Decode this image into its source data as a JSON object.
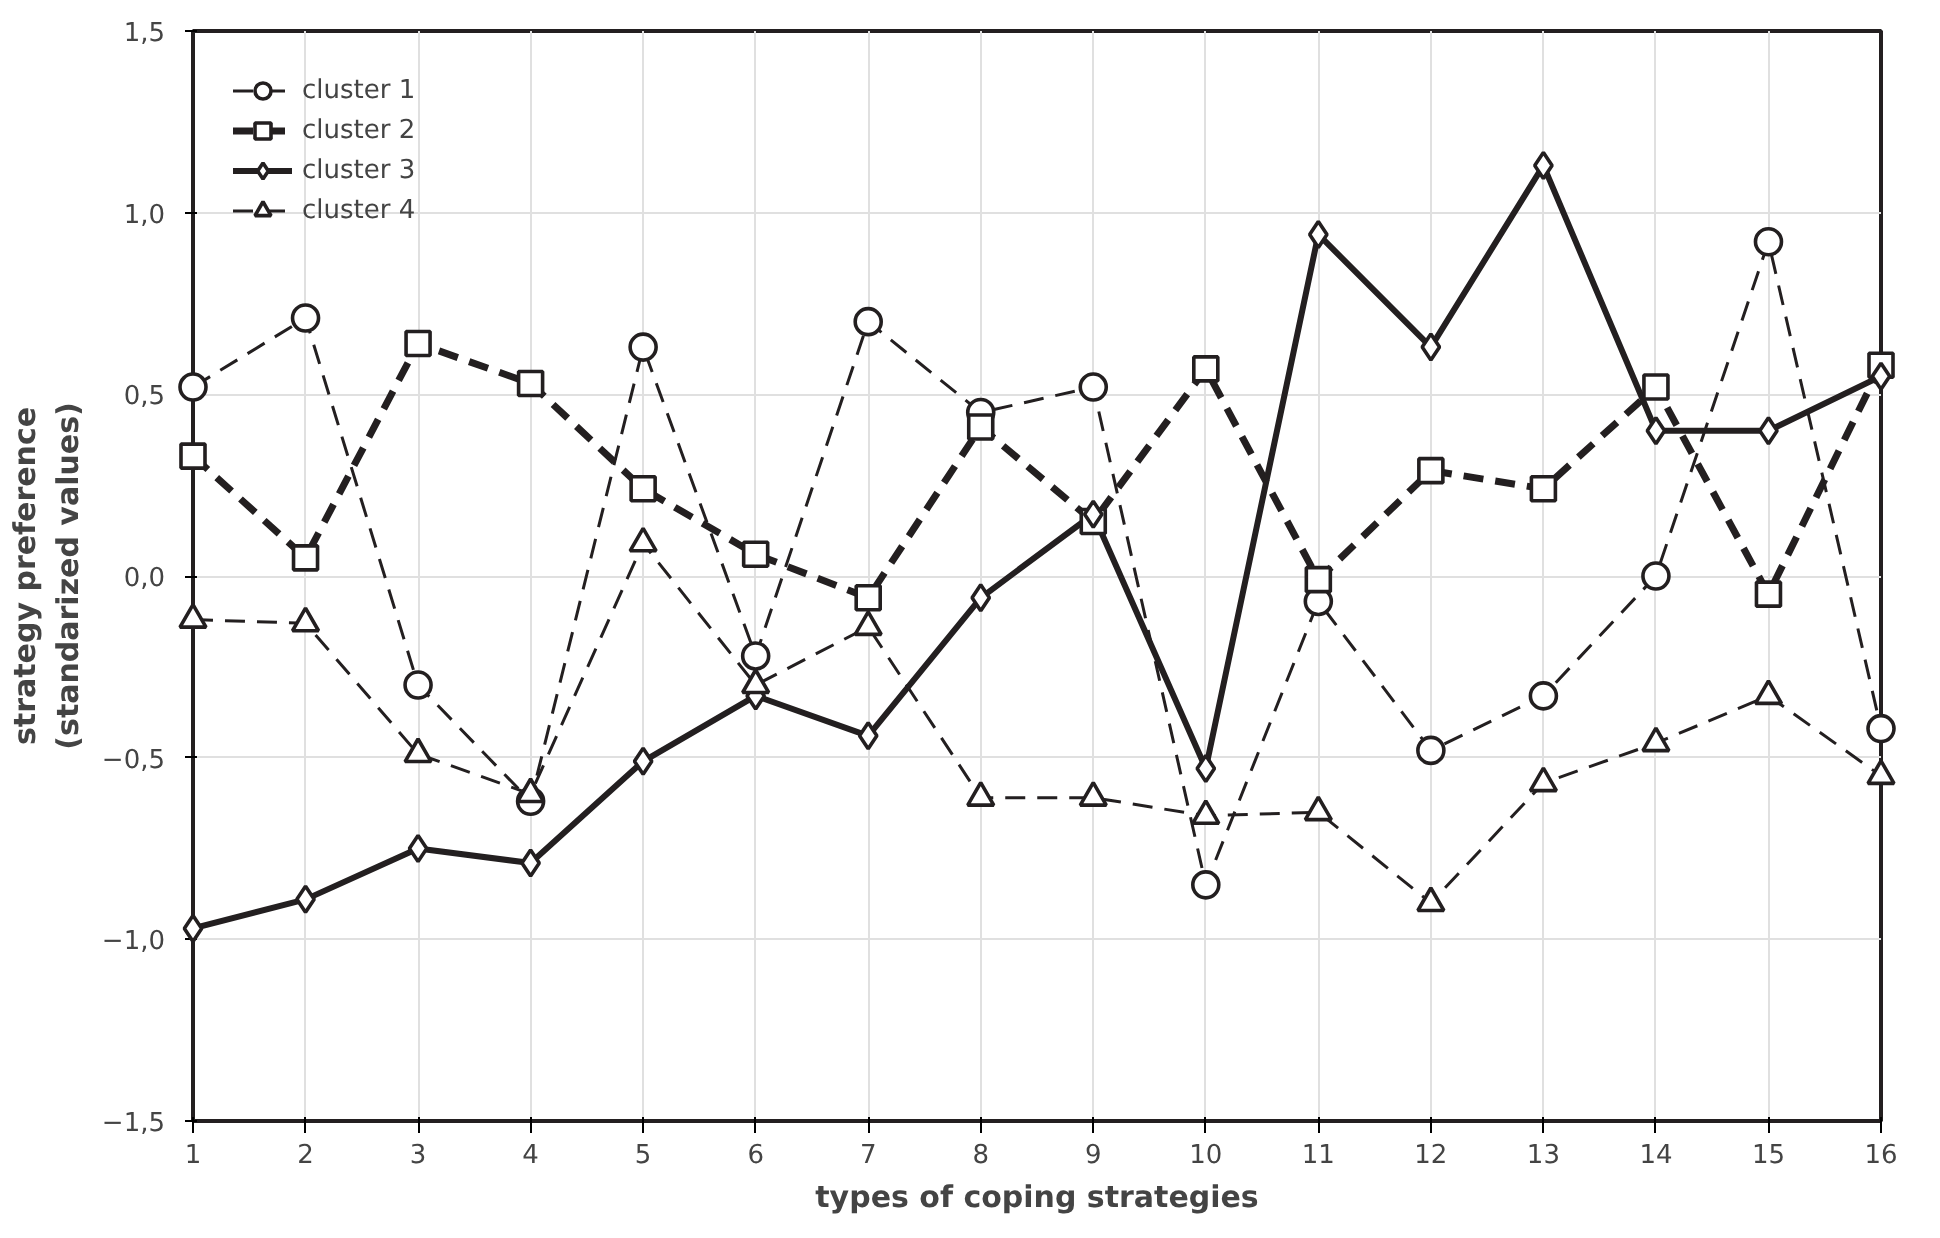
{
  "chart_data": {
    "type": "line",
    "xlabel": "types of coping strategies",
    "ylabel": "strategy preference\n(standarized values)",
    "x": [
      1,
      2,
      3,
      4,
      5,
      6,
      7,
      8,
      9,
      10,
      11,
      12,
      13,
      14,
      15,
      16
    ],
    "xlim": [
      1,
      16
    ],
    "xticks": [
      1,
      2,
      3,
      4,
      5,
      6,
      7,
      8,
      9,
      10,
      11,
      12,
      13,
      14,
      15,
      16
    ],
    "ylim": [
      -1.5,
      1.5
    ],
    "yticks": [
      {
        "value": -1.5,
        "label": "−1,5"
      },
      {
        "value": -1.0,
        "label": "−1,0"
      },
      {
        "value": -0.5,
        "label": "−0,5"
      },
      {
        "value": 0,
        "label": "0,0"
      },
      {
        "value": 0.5,
        "label": "0,5"
      },
      {
        "value": 1.0,
        "label": "1,0"
      },
      {
        "value": 1.5,
        "label": "1,5"
      }
    ],
    "grid": true,
    "legend": "top left",
    "series": [
      {
        "name": "cluster 1",
        "color": "#231f20",
        "marker": "circle",
        "line_style": "dashed",
        "values": [
          0.52,
          0.71,
          -0.3,
          -0.62,
          0.63,
          -0.22,
          0.7,
          0.45,
          0.52,
          -0.85,
          -0.07,
          -0.48,
          -0.33,
          0.0,
          0.92,
          -0.42
        ]
      },
      {
        "name": "cluster 2",
        "color": "#231f20",
        "marker": "square",
        "line_style": "dashed",
        "values": [
          0.33,
          0.05,
          0.64,
          0.53,
          0.24,
          0.06,
          -0.06,
          0.41,
          0.15,
          0.57,
          -0.01,
          0.29,
          0.24,
          0.52,
          -0.05,
          0.58
        ]
      },
      {
        "name": "cluster 3",
        "color": "#231f20",
        "marker": "diamond",
        "line_style": "solid",
        "values": [
          -0.97,
          -0.89,
          -0.75,
          -0.79,
          -0.51,
          -0.33,
          -0.44,
          -0.06,
          0.17,
          -0.53,
          0.94,
          0.63,
          1.13,
          0.4,
          0.4,
          0.55
        ]
      },
      {
        "name": "cluster 4",
        "color": "#231f20",
        "marker": "triangle",
        "line_style": "dashed",
        "values": [
          -0.12,
          -0.13,
          -0.49,
          -0.6,
          0.09,
          -0.3,
          -0.14,
          -0.61,
          -0.61,
          -0.66,
          -0.65,
          -0.9,
          -0.57,
          -0.46,
          -0.33,
          -0.55
        ]
      }
    ]
  }
}
